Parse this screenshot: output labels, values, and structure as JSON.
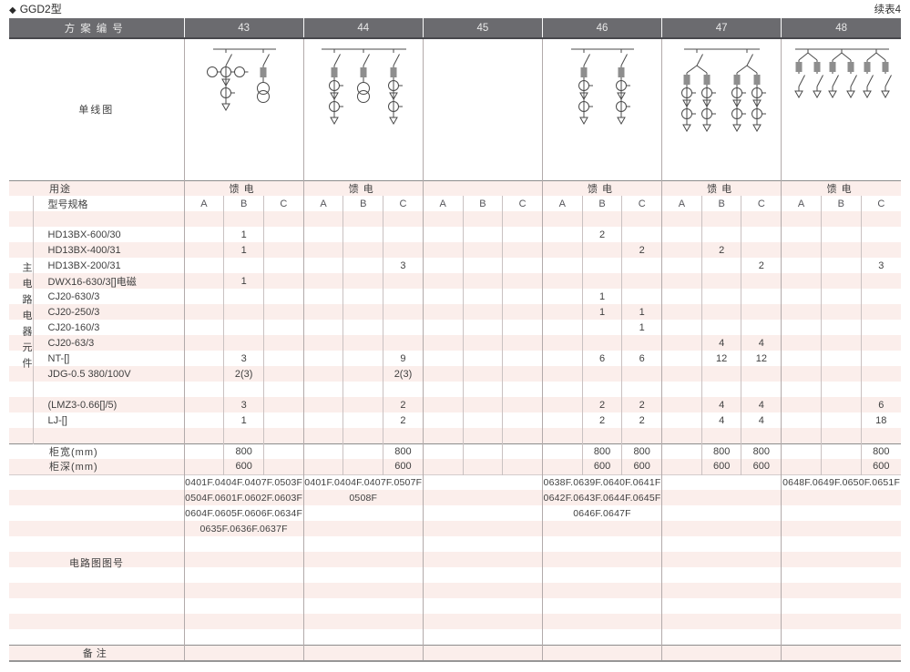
{
  "page": {
    "title_marker": "◆",
    "title": "GGD2型",
    "continuation": "续表4"
  },
  "table": {
    "header": {
      "label": "方案编号",
      "schemes": [
        "43",
        "44",
        "45",
        "46",
        "47",
        "48"
      ]
    },
    "diagram_row_label": "单线图",
    "usage_row": {
      "label": "用途",
      "values": [
        "馈电",
        "馈电",
        "",
        "馈电",
        "馈电",
        "馈电"
      ]
    },
    "spec_row": {
      "label": "型号规格",
      "phases": [
        "A",
        "B",
        "C"
      ]
    },
    "left_vertical_label": "主电路电器元件",
    "column_keys": [
      "43A",
      "43B",
      "43C",
      "44A",
      "44B",
      "44C",
      "45A",
      "45B",
      "45C",
      "46A",
      "46B",
      "46C",
      "47A",
      "47B",
      "47C",
      "48A",
      "48B",
      "48C"
    ],
    "component_rows": [
      {
        "name": "",
        "values": [
          "",
          "",
          "",
          "",
          "",
          "",
          "",
          "",
          "",
          "",
          "",
          "",
          "",
          "",
          "",
          "",
          "",
          ""
        ]
      },
      {
        "name": "HD13BX-600/30",
        "values": [
          "",
          "1",
          "",
          "",
          "",
          "",
          "",
          "",
          "",
          "",
          "2",
          "",
          "",
          "",
          "",
          "",
          "",
          ""
        ]
      },
      {
        "name": "HD13BX-400/31",
        "values": [
          "",
          "1",
          "",
          "",
          "",
          "",
          "",
          "",
          "",
          "",
          "",
          "2",
          "",
          "2",
          "",
          "",
          "",
          ""
        ]
      },
      {
        "name": "HD13BX-200/31",
        "values": [
          "",
          "",
          "",
          "",
          "",
          "3",
          "",
          "",
          "",
          "",
          "",
          "",
          "",
          "",
          "2",
          "",
          "",
          "3"
        ]
      },
      {
        "name": "DWX16-630/3[]电磁",
        "values": [
          "",
          "1",
          "",
          "",
          "",
          "",
          "",
          "",
          "",
          "",
          "",
          "",
          "",
          "",
          "",
          "",
          "",
          ""
        ]
      },
      {
        "name": "CJ20-630/3",
        "values": [
          "",
          "",
          "",
          "",
          "",
          "",
          "",
          "",
          "",
          "",
          "1",
          "",
          "",
          "",
          "",
          "",
          "",
          ""
        ]
      },
      {
        "name": "CJ20-250/3",
        "values": [
          "",
          "",
          "",
          "",
          "",
          "",
          "",
          "",
          "",
          "",
          "1",
          "1",
          "",
          "",
          "",
          "",
          "",
          ""
        ]
      },
      {
        "name": "CJ20-160/3",
        "values": [
          "",
          "",
          "",
          "",
          "",
          "",
          "",
          "",
          "",
          "",
          "",
          "1",
          "",
          "",
          "",
          "",
          "",
          ""
        ]
      },
      {
        "name": "CJ20-63/3",
        "values": [
          "",
          "",
          "",
          "",
          "",
          "",
          "",
          "",
          "",
          "",
          "",
          "",
          "",
          "4",
          "4",
          "",
          "",
          ""
        ]
      },
      {
        "name": "NT-[]",
        "values": [
          "",
          "3",
          "",
          "",
          "",
          "9",
          "",
          "",
          "",
          "",
          "6",
          "6",
          "",
          "12",
          "12",
          "",
          "",
          ""
        ]
      },
      {
        "name": "JDG-0.5  380/100V",
        "values": [
          "",
          "2(3)",
          "",
          "",
          "",
          "2(3)",
          "",
          "",
          "",
          "",
          "",
          "",
          "",
          "",
          "",
          "",
          "",
          ""
        ]
      },
      {
        "name": "",
        "values": [
          "",
          "",
          "",
          "",
          "",
          "",
          "",
          "",
          "",
          "",
          "",
          "",
          "",
          "",
          "",
          "",
          "",
          ""
        ]
      },
      {
        "name": "(LMZ3-0.66[]/5)",
        "values": [
          "",
          "3",
          "",
          "",
          "",
          "2",
          "",
          "",
          "",
          "",
          "2",
          "2",
          "",
          "4",
          "4",
          "",
          "",
          "6"
        ]
      },
      {
        "name": "LJ-[]",
        "values": [
          "",
          "1",
          "",
          "",
          "",
          "2",
          "",
          "",
          "",
          "",
          "2",
          "2",
          "",
          "4",
          "4",
          "",
          "",
          "18"
        ]
      },
      {
        "name": "",
        "values": [
          "",
          "",
          "",
          "",
          "",
          "",
          "",
          "",
          "",
          "",
          "",
          "",
          "",
          "",
          "",
          "",
          "",
          ""
        ]
      }
    ],
    "dimension_rows": [
      {
        "name": "柜宽(mm)",
        "values": [
          "",
          "800",
          "",
          "",
          "",
          "800",
          "",
          "",
          "",
          "",
          "800",
          "800",
          "",
          "800",
          "800",
          "",
          "",
          "800"
        ]
      },
      {
        "name": "柜深(mm)",
        "values": [
          "",
          "600",
          "",
          "",
          "",
          "600",
          "",
          "",
          "",
          "",
          "600",
          "600",
          "",
          "600",
          "600",
          "",
          "",
          "600"
        ]
      }
    ],
    "circuit_label": "电路图图号",
    "circuit_rows": [
      [
        "0401F.0404F.0407F.0503F",
        "0401F.0404F.0407F.0507F",
        "",
        "0638F.0639F.0640F.0641F",
        "",
        "0648F.0649F.0650F.0651F"
      ],
      [
        "0504F.0601F.0602F.0603F",
        "0508F",
        "",
        "0642F.0643F.0644F.0645F",
        "",
        ""
      ],
      [
        "0604F.0605F.0606F.0634F",
        "",
        "",
        "0646F.0647F",
        "",
        ""
      ],
      [
        "0635F.0636F.0637F",
        "",
        "",
        "",
        "",
        ""
      ],
      [
        "",
        "",
        "",
        "",
        "",
        ""
      ],
      [
        "",
        "",
        "",
        "",
        "",
        ""
      ],
      [
        "",
        "",
        "",
        "",
        "",
        ""
      ],
      [
        "",
        "",
        "",
        "",
        "",
        ""
      ],
      [
        "",
        "",
        "",
        "",
        "",
        ""
      ],
      [
        "",
        "",
        "",
        "",
        "",
        ""
      ],
      [
        "",
        "",
        "",
        "",
        "",
        ""
      ]
    ],
    "remark_row": {
      "label": "备注",
      "values": [
        "",
        "",
        "",
        "",
        "",
        ""
      ]
    },
    "diagrams": [
      {
        "scheme": "43",
        "branches": [
          {
            "head": [
              "sw",
              "ct3",
              "tr",
              "ct",
              "ar"
            ]
          },
          {
            "head": [
              "sw",
              "fu",
              "pt"
            ]
          }
        ]
      },
      {
        "scheme": "44",
        "branches": [
          {
            "head": [
              "sw",
              "fu",
              "ct",
              "tr",
              "ct",
              "ar"
            ]
          },
          {
            "head": [
              "sw",
              "fu",
              "pt"
            ]
          },
          {
            "head": [
              "sw",
              "fu",
              "ct",
              "tr",
              "ct",
              "ar"
            ]
          }
        ]
      },
      {
        "scheme": "45",
        "branches": []
      },
      {
        "scheme": "46",
        "branches": [
          {
            "head": [
              "sw",
              "fu",
              "ct",
              "tr",
              "ct",
              "ar"
            ]
          },
          {
            "head": [
              "sw",
              "fu",
              "ct",
              "tr",
              "ct",
              "ar"
            ]
          }
        ]
      },
      {
        "scheme": "47",
        "branches": [
          {
            "head": [
              "sw"
            ],
            "sub": [
              [
                "fu",
                "ct",
                "tr",
                "ct",
                "ar"
              ],
              [
                "fu",
                "ct",
                "tr",
                "ct",
                "ar"
              ]
            ]
          },
          {
            "head": [
              "sw"
            ],
            "sub": [
              [
                "fu",
                "ct",
                "tr",
                "ct",
                "ar"
              ],
              [
                "fu",
                "ct",
                "tr",
                "ct",
                "ar"
              ]
            ]
          }
        ]
      },
      {
        "scheme": "48",
        "branches": [
          {
            "head": [],
            "sub": [
              [
                "fu",
                "sw",
                "ar"
              ],
              [
                "fu",
                "sw",
                "ar"
              ]
            ]
          },
          {
            "head": [],
            "sub": [
              [
                "fu",
                "sw",
                "ar"
              ],
              [
                "fu",
                "sw",
                "ar"
              ]
            ]
          },
          {
            "head": [],
            "sub": [
              [
                "fu",
                "sw",
                "ar"
              ],
              [
                "fu",
                "sw",
                "ar"
              ]
            ]
          }
        ]
      }
    ]
  }
}
